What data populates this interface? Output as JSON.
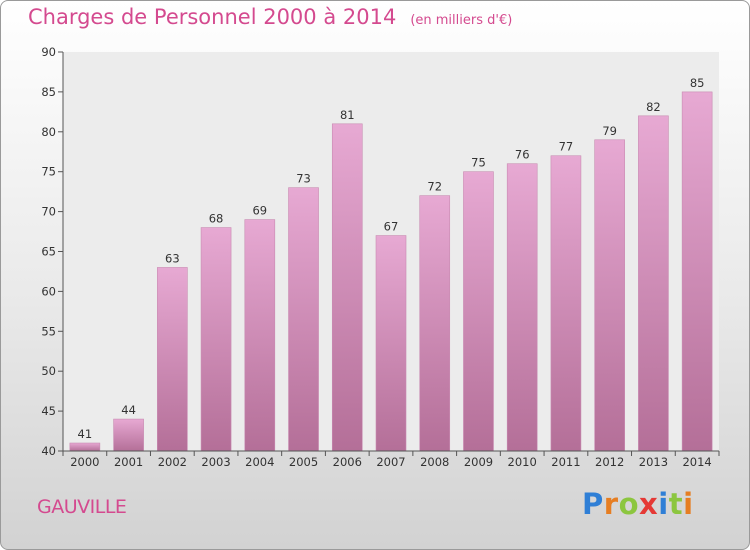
{
  "header": {
    "title": "Charges de Personnel 2000 à 2014",
    "subtitle": "(en milliers d'€)"
  },
  "footer": {
    "place": "GAUVILLE",
    "logo_letters": [
      {
        "ch": "P",
        "color": "#2f7fd6"
      },
      {
        "ch": "r",
        "color": "#e67e22"
      },
      {
        "ch": "o",
        "color": "#8cc63f"
      },
      {
        "ch": "x",
        "color": "#e53935"
      },
      {
        "ch": "i",
        "color": "#2f7fd6"
      },
      {
        "ch": "t",
        "color": "#8cc63f"
      },
      {
        "ch": "i",
        "color": "#e67e22"
      }
    ]
  },
  "chart_data": {
    "type": "bar",
    "title": "Charges de Personnel 2000 à 2014",
    "subtitle": "(en milliers d'€)",
    "categories": [
      "2000",
      "2001",
      "2002",
      "2003",
      "2004",
      "2005",
      "2006",
      "2007",
      "2008",
      "2009",
      "2010",
      "2011",
      "2012",
      "2013",
      "2014"
    ],
    "values": [
      41,
      44,
      63,
      68,
      69,
      73,
      81,
      67,
      72,
      75,
      76,
      77,
      79,
      82,
      85
    ],
    "ylim": [
      40,
      90
    ],
    "yticks": [
      40,
      45,
      50,
      55,
      60,
      65,
      70,
      75,
      80,
      85,
      90
    ],
    "grid": false,
    "bar_color_top": "#e7a9d3",
    "bar_color_bottom": "#b46f98",
    "text_color": "#d44a8f"
  }
}
